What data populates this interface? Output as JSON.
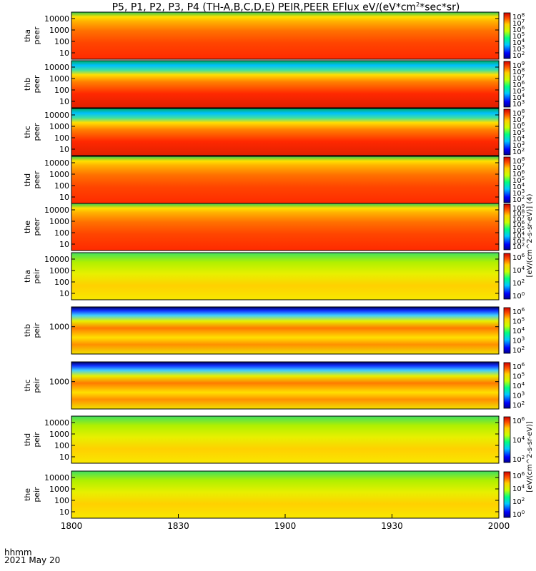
{
  "title": "P5, P1, P2, P3, P4 (TH-A,B,C,D,E) PEIR,PEER EFlux eV/(eV*cm",
  "title_sup": "2",
  "title_tail": "*sec*sr)",
  "time_axis": {
    "format_label": "hhmm",
    "date_label": "2021 May 20",
    "tick_labels": [
      "1800",
      "1830",
      "1900",
      "1930",
      "2000"
    ]
  },
  "colorbar_title_top": "[eV/(cm^2-s-sr-eV)] (4)",
  "colorbar_title_bottom": "[eV/(cm^2-s-sr-eV)]",
  "chart_data": [
    {
      "type": "heatmap",
      "probe": "tha",
      "species": "peer",
      "ylabel": [
        "tha",
        "peer"
      ],
      "yticks": [
        "10000",
        "1000",
        "100",
        "10"
      ],
      "cbar_ticks": [
        "10^8",
        "10^7",
        "10^6",
        "10^5",
        "10^4",
        "10^3",
        "10^2"
      ]
    },
    {
      "type": "heatmap",
      "probe": "thb",
      "species": "peer",
      "ylabel": [
        "thb",
        "peer"
      ],
      "yticks": [
        "10000",
        "1000",
        "100",
        "10"
      ],
      "cbar_ticks": [
        "10^9",
        "10^8",
        "10^7",
        "10^6",
        "10^5",
        "10^4",
        "10^3"
      ]
    },
    {
      "type": "heatmap",
      "probe": "thc",
      "species": "peer",
      "ylabel": [
        "thc",
        "peer"
      ],
      "yticks": [
        "10000",
        "1000",
        "100",
        "10"
      ],
      "cbar_ticks": [
        "10^8",
        "10^7",
        "10^6",
        "10^5",
        "10^4",
        "10^3",
        "10^2"
      ]
    },
    {
      "type": "heatmap",
      "probe": "thd",
      "species": "peer",
      "ylabel": [
        "thd",
        "peer"
      ],
      "yticks": [
        "10000",
        "1000",
        "100",
        "10"
      ],
      "cbar_ticks": [
        "10^8",
        "10^7",
        "10^6",
        "10^5",
        "10^4",
        "10^3",
        "10^2"
      ]
    },
    {
      "type": "heatmap",
      "probe": "the",
      "species": "peer",
      "ylabel": [
        "the",
        "peer"
      ],
      "yticks": [
        "10000",
        "1000",
        "100",
        "10"
      ],
      "cbar_ticks": [
        "10^9",
        "10^8",
        "10^7",
        "10^6",
        "10^5",
        "10^4",
        "10^3",
        "10^2"
      ]
    },
    {
      "type": "heatmap",
      "probe": "tha",
      "species": "peir",
      "ylabel": [
        "tha",
        "peir"
      ],
      "yticks": [
        "10000",
        "1000",
        "100",
        "10"
      ],
      "cbar_ticks": [
        "10^6",
        "10^4",
        "10^2",
        "10^0"
      ]
    },
    {
      "type": "heatmap",
      "probe": "thb",
      "species": "peir",
      "ylabel": [
        "thb",
        "peir"
      ],
      "yticks": [
        "1000"
      ],
      "cbar_ticks": [
        "10^6",
        "10^5",
        "10^4",
        "10^3",
        "10^2"
      ]
    },
    {
      "type": "heatmap",
      "probe": "thc",
      "species": "peir",
      "ylabel": [
        "thc",
        "peir"
      ],
      "yticks": [
        "1000"
      ],
      "cbar_ticks": [
        "10^6",
        "10^5",
        "10^4",
        "10^3",
        "10^2"
      ]
    },
    {
      "type": "heatmap",
      "probe": "thd",
      "species": "peir",
      "ylabel": [
        "thd",
        "peir"
      ],
      "yticks": [
        "10000",
        "1000",
        "100",
        "10"
      ],
      "cbar_ticks": [
        "10^6",
        "10^4",
        "10^2"
      ]
    },
    {
      "type": "heatmap",
      "probe": "the",
      "species": "peir",
      "ylabel": [
        "the",
        "peir"
      ],
      "yticks": [
        "10000",
        "1000",
        "100",
        "10"
      ],
      "cbar_ticks": [
        "10^6",
        "10^4",
        "10^2",
        "10^0"
      ]
    }
  ]
}
